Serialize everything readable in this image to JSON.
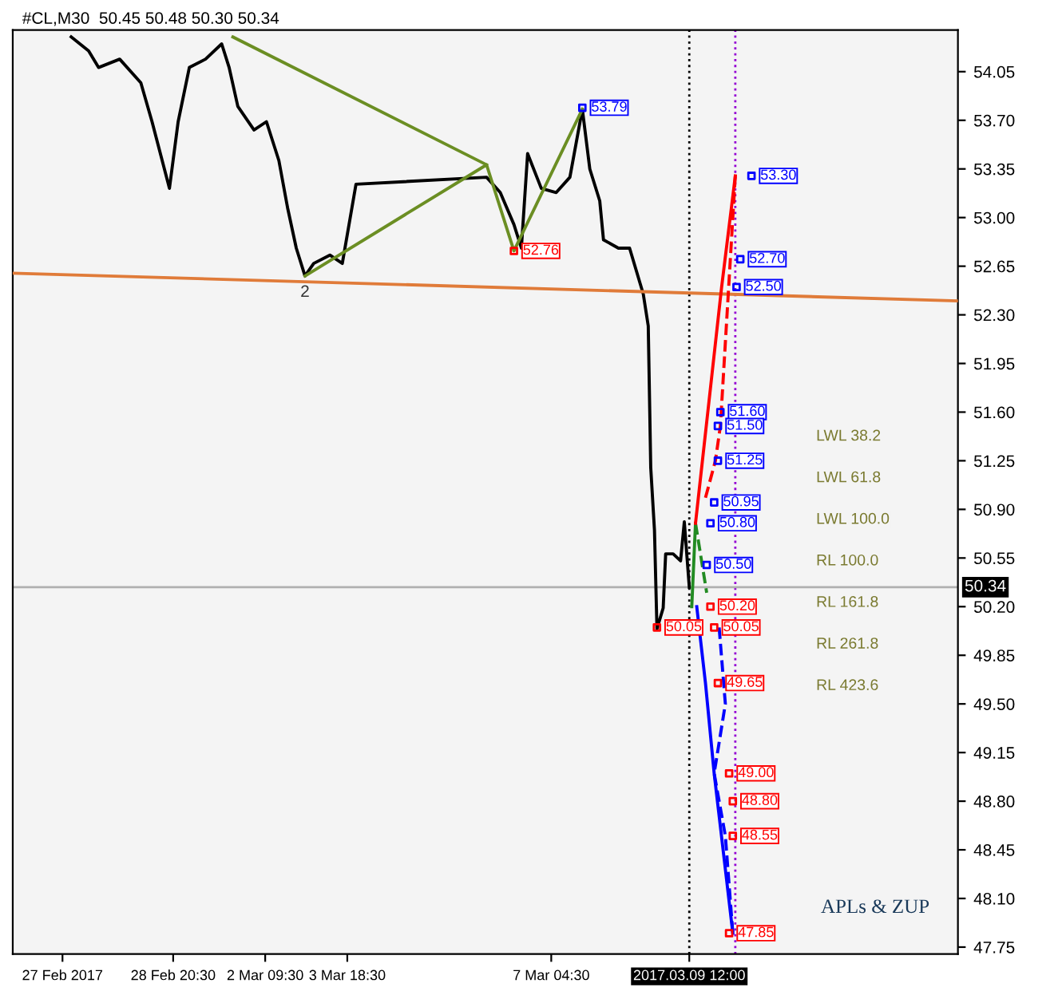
{
  "chart_data": {
    "type": "line",
    "title": "#CL,M30  50.45 50.48 50.30 50.34",
    "xlim": [
      "2017-02-26T04:00",
      "2017-03-14T00:00"
    ],
    "xticks": [
      {
        "value": "2017-02-27",
        "label": "27 Feb 2017"
      },
      {
        "value": "2017-02-28T20:30",
        "label": "28 Feb 20:30"
      },
      {
        "value": "2017-03-02T09:30",
        "label": "2 Mar 09:30"
      },
      {
        "value": "2017-03-03T18:30",
        "label": "3 Mar 18:30"
      },
      {
        "value": "2017-03-07T04:30",
        "label": "7 Mar 04:30"
      },
      {
        "value": "2017-03-09T12:00",
        "label": "2017.03.09 12:00"
      }
    ],
    "ylim": [
      47.7,
      54.35
    ],
    "yticks": [
      {
        "value": 54.05,
        "label": "54.05"
      },
      {
        "value": 53.7,
        "label": "53.70"
      },
      {
        "value": 53.35,
        "label": "53.35"
      },
      {
        "value": 53.0,
        "label": "53.00"
      },
      {
        "value": 52.65,
        "label": "52.65"
      },
      {
        "value": 52.3,
        "label": "52.30"
      },
      {
        "value": 51.95,
        "label": "51.95"
      },
      {
        "value": 51.6,
        "label": "51.60"
      },
      {
        "value": 51.25,
        "label": "51.25"
      },
      {
        "value": 50.9,
        "label": "50.90"
      },
      {
        "value": 50.55,
        "label": "50.55"
      },
      {
        "value": 50.2,
        "label": "50.20"
      },
      {
        "value": 49.85,
        "label": "49.85"
      },
      {
        "value": 49.5,
        "label": "49.50"
      },
      {
        "value": 49.15,
        "label": "49.15"
      },
      {
        "value": 48.8,
        "label": "48.80"
      },
      {
        "value": 48.45,
        "label": "48.45"
      },
      {
        "value": 48.1,
        "label": "48.10"
      },
      {
        "value": 47.75,
        "label": "47.75"
      }
    ],
    "series": [
      {
        "color": "#000000",
        "x": [
          "2017-02-27T03:30",
          "2017-02-27T10:30",
          "2017-02-27T14:30",
          "2017-02-27T23:00",
          "2017-02-28T07:30",
          "2017-02-28T12:00",
          "2017-02-28T19:00",
          "2017-02-28T22:30",
          "2017-03-01T03:00",
          "2017-03-01T09:30",
          "2017-03-01T16:00",
          "2017-03-01T19:00",
          "2017-03-01T22:30",
          "2017-03-02T05:00",
          "2017-03-02T10:00",
          "2017-03-02T15:00",
          "2017-03-02T18:30",
          "2017-03-02T22:00",
          "2017-03-03T01:30",
          "2017-03-03T05:00",
          "2017-03-03T11:30",
          "2017-03-03T16:30",
          "2017-03-03T22:00",
          "2017-03-06T02:30",
          "2017-03-06T08:00",
          "2017-03-06T13:30",
          "2017-03-06T16:30",
          "2017-03-06T19:00",
          "2017-03-07T00:30",
          "2017-03-07T06:30",
          "2017-03-07T12:00",
          "2017-03-07T17:00",
          "2017-03-07T20:00",
          "2017-03-08T00:00",
          "2017-03-08T01:30",
          "2017-03-08T07:30",
          "2017-03-08T12:00",
          "2017-03-08T17:30",
          "2017-03-08T19:30",
          "2017-03-08T20:30",
          "2017-03-08T22:00",
          "2017-03-08T23:00",
          "2017-03-09T01:30",
          "2017-03-09T02:30",
          "2017-03-09T05:30",
          "2017-03-09T08:30",
          "2017-03-09T10:00",
          "2017-03-09T12:00"
        ],
        "values": [
          54.3,
          54.2,
          54.08,
          54.14,
          53.97,
          53.69,
          53.21,
          53.69,
          54.08,
          54.14,
          54.25,
          54.08,
          53.8,
          53.63,
          53.69,
          53.41,
          53.07,
          52.78,
          52.58,
          52.67,
          52.73,
          52.67,
          53.24,
          53.29,
          53.18,
          52.95,
          52.78,
          53.46,
          53.21,
          53.18,
          53.29,
          53.78,
          53.35,
          53.12,
          52.84,
          52.78,
          52.78,
          52.45,
          52.22,
          51.2,
          50.75,
          50.04,
          50.19,
          50.58,
          50.58,
          50.53,
          50.81,
          50.34
        ]
      },
      {
        "color": "#6b8e23",
        "x": [
          "2017-03-03T01:30",
          "2017-03-06T02:30",
          "2017-03-06T13:30",
          "2017-03-07T17:00"
        ],
        "values": [
          52.58,
          53.38,
          52.76,
          53.78
        ]
      },
      {
        "color": "#6b8e23",
        "x": [
          "2017-03-01T20:30",
          "2017-03-06T02:30"
        ],
        "values": [
          54.3,
          53.38
        ]
      },
      {
        "color": "#e07b39",
        "x": [
          "2017-02-26T04:00",
          "2017-03-14T00:00"
        ],
        "values": [
          52.6,
          52.4
        ]
      },
      {
        "color": "#228b22",
        "x": [
          "2017-03-09T13:00",
          "2017-03-09T14:30"
        ],
        "values": [
          50.2,
          50.8
        ]
      },
      {
        "color": "#228b22",
        "line_style": "dashed",
        "x": [
          "2017-03-09T14:30",
          "2017-03-09T19:00"
        ],
        "values": [
          50.8,
          50.3
        ]
      },
      {
        "color": "#ff0000",
        "x": [
          "2017-03-09T14:30",
          "2017-03-10T01:00",
          "2017-03-10T06:30"
        ],
        "values": [
          50.8,
          52.5,
          53.3
        ]
      },
      {
        "color": "#ff0000",
        "line_style": "dashed",
        "x": [
          "2017-03-10T06:30",
          "2017-03-10T00:30",
          "2017-03-09T22:30",
          "2017-03-09T18:00"
        ],
        "values": [
          53.3,
          51.5,
          51.25,
          50.95
        ]
      },
      {
        "color": "#0000ff",
        "x": [
          "2017-03-09T15:00",
          "2017-03-09T18:30",
          "2017-03-09T22:00",
          "2017-03-10T05:30"
        ],
        "values": [
          50.2,
          49.65,
          49.0,
          47.85
        ]
      },
      {
        "color": "#0000ff",
        "line_style": "dashed",
        "x": [
          "2017-03-10T00:00",
          "2017-03-10T02:30",
          "2017-03-09T22:00",
          "2017-03-10T02:30",
          "2017-03-10T05:30"
        ],
        "values": [
          50.05,
          49.5,
          49.0,
          48.55,
          47.85
        ]
      },
      {
        "type": "scatter",
        "marker": "square",
        "color": "#0000ff",
        "x": [
          "2017-03-07T17:00",
          "2017-03-10T13:00",
          "2017-03-10T08:30",
          "2017-03-10T07:00",
          "2017-03-10T00:30",
          "2017-03-09T23:30",
          "2017-03-09T23:30",
          "2017-03-09T22:00",
          "2017-03-09T20:30",
          "2017-03-09T19:00"
        ],
        "values": [
          53.79,
          53.3,
          52.7,
          52.5,
          51.6,
          51.5,
          51.25,
          50.95,
          50.8,
          50.5
        ],
        "value_labels": [
          "53.79",
          "53.30",
          "52.70",
          "52.50",
          "51.60",
          "51.50",
          "51.25",
          "50.95",
          "50.80",
          "50.50"
        ]
      },
      {
        "type": "scatter",
        "marker": "square",
        "color": "#ff0000",
        "x": [
          "2017-03-06T13:30",
          "2017-03-08T23:00",
          "2017-03-09T20:30",
          "2017-03-09T22:00",
          "2017-03-09T23:30",
          "2017-03-10T04:00",
          "2017-03-10T05:30",
          "2017-03-10T05:30",
          "2017-03-10T04:00"
        ],
        "values": [
          52.76,
          50.05,
          50.2,
          50.05,
          49.65,
          49.0,
          48.8,
          48.55,
          47.85
        ],
        "value_labels": [
          "52.76",
          "50.05",
          "50.20",
          "50.05",
          "49.65",
          "49.00",
          "48.80",
          "48.55",
          "47.85"
        ]
      }
    ],
    "ref_lines": [
      {
        "axis": "x",
        "value": "2017-03-09T12:00",
        "color": "#000000",
        "line_style": "dotted"
      },
      {
        "axis": "x",
        "value": "2017-03-10T06:30",
        "color": "#9400d3",
        "line_style": "dotted"
      },
      {
        "axis": "y",
        "value": 50.34,
        "color": "#b0b0b0",
        "label": "50.34"
      }
    ],
    "annotations": [
      {
        "text": "2",
        "x": "2017-03-03T01:30",
        "y": 52.58
      },
      "LWL 38.2",
      "LWL 61.8",
      "LWL 100.0",
      "RL 100.0",
      "RL 161.8",
      "RL 261.8",
      "RL 423.6",
      "APLs & ZUP"
    ]
  }
}
